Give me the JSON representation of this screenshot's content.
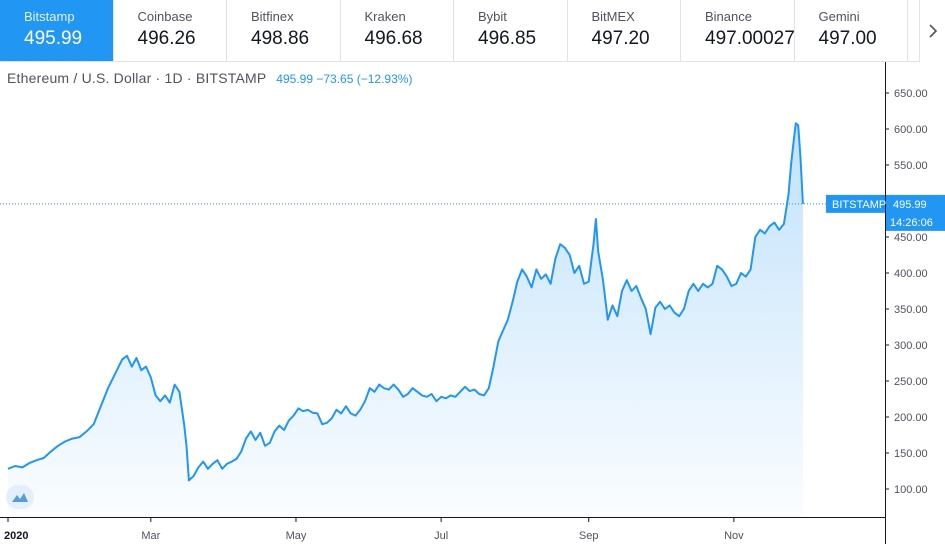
{
  "tabs": [
    {
      "name": "Bitstamp",
      "price": "495.99",
      "active": true
    },
    {
      "name": "Coinbase",
      "price": "496.26"
    },
    {
      "name": "Bitfinex",
      "price": "498.86"
    },
    {
      "name": "Kraken",
      "price": "496.68"
    },
    {
      "name": "Bybit",
      "price": "496.85"
    },
    {
      "name": "BitMEX",
      "price": "497.20"
    },
    {
      "name": "Binance",
      "price": "497.000274"
    },
    {
      "name": "Gemini",
      "price": "497.00"
    }
  ],
  "legend": {
    "symbol": "Ethereum / U.S. Dollar · 1D · BITSTAMP",
    "last": "495.99",
    "change": "−73.65",
    "change_pct": "(−12.93%)"
  },
  "price_badge": {
    "label": "BITSTAMP",
    "value": "495.99",
    "countdown": "14:26:06"
  },
  "colors": {
    "accent": "#2196f3",
    "tab_active": "#2196f3",
    "area_fill": "#2196f3"
  },
  "icons": {
    "next": "chevron-right-icon",
    "logo": "tradingview-logo-icon"
  },
  "chart_data": {
    "type": "area",
    "ylim": [
      50,
      675
    ],
    "y_ticks": [
      100,
      150,
      200,
      250,
      300,
      350,
      400,
      450,
      500,
      550,
      600,
      650
    ],
    "y_tick_labels": [
      "100.00",
      "150.00",
      "200.00",
      "250.00",
      "300.00",
      "350.00",
      "400.00",
      "450.00",
      "500.00",
      "550.00",
      "600.00",
      "650.00"
    ],
    "x_ticks": [
      {
        "day": 0,
        "label": "2020"
      },
      {
        "day": 60,
        "label": "Mar"
      },
      {
        "day": 121,
        "label": "May"
      },
      {
        "day": 182,
        "label": "Jul"
      },
      {
        "day": 244,
        "label": "Sep"
      },
      {
        "day": 305,
        "label": "Nov"
      }
    ],
    "last_value": 495.99,
    "points": [
      [
        0,
        128
      ],
      [
        3,
        132
      ],
      [
        6,
        130
      ],
      [
        9,
        136
      ],
      [
        12,
        140
      ],
      [
        15,
        143
      ],
      [
        18,
        152
      ],
      [
        21,
        160
      ],
      [
        24,
        166
      ],
      [
        27,
        170
      ],
      [
        30,
        172
      ],
      [
        33,
        180
      ],
      [
        36,
        190
      ],
      [
        39,
        215
      ],
      [
        42,
        240
      ],
      [
        45,
        260
      ],
      [
        48,
        280
      ],
      [
        50,
        285
      ],
      [
        52,
        270
      ],
      [
        54,
        282
      ],
      [
        56,
        265
      ],
      [
        58,
        270
      ],
      [
        60,
        255
      ],
      [
        62,
        230
      ],
      [
        64,
        222
      ],
      [
        66,
        230
      ],
      [
        68,
        220
      ],
      [
        70,
        245
      ],
      [
        72,
        235
      ],
      [
        74,
        190
      ],
      [
        75,
        160
      ],
      [
        76,
        112
      ],
      [
        78,
        118
      ],
      [
        80,
        130
      ],
      [
        82,
        138
      ],
      [
        84,
        128
      ],
      [
        86,
        135
      ],
      [
        88,
        140
      ],
      [
        90,
        128
      ],
      [
        92,
        135
      ],
      [
        94,
        138
      ],
      [
        96,
        142
      ],
      [
        98,
        152
      ],
      [
        100,
        170
      ],
      [
        102,
        180
      ],
      [
        104,
        168
      ],
      [
        106,
        178
      ],
      [
        108,
        160
      ],
      [
        110,
        164
      ],
      [
        112,
        180
      ],
      [
        114,
        188
      ],
      [
        116,
        182
      ],
      [
        118,
        195
      ],
      [
        120,
        202
      ],
      [
        122,
        212
      ],
      [
        124,
        208
      ],
      [
        126,
        210
      ],
      [
        128,
        206
      ],
      [
        130,
        205
      ],
      [
        132,
        190
      ],
      [
        134,
        192
      ],
      [
        136,
        198
      ],
      [
        138,
        210
      ],
      [
        140,
        205
      ],
      [
        142,
        215
      ],
      [
        144,
        205
      ],
      [
        146,
        202
      ],
      [
        148,
        210
      ],
      [
        150,
        222
      ],
      [
        152,
        240
      ],
      [
        154,
        235
      ],
      [
        156,
        245
      ],
      [
        158,
        240
      ],
      [
        160,
        238
      ],
      [
        162,
        245
      ],
      [
        164,
        238
      ],
      [
        166,
        228
      ],
      [
        168,
        232
      ],
      [
        170,
        240
      ],
      [
        172,
        235
      ],
      [
        174,
        230
      ],
      [
        176,
        228
      ],
      [
        178,
        232
      ],
      [
        180,
        222
      ],
      [
        182,
        228
      ],
      [
        184,
        226
      ],
      [
        186,
        230
      ],
      [
        188,
        228
      ],
      [
        190,
        235
      ],
      [
        192,
        242
      ],
      [
        194,
        236
      ],
      [
        196,
        238
      ],
      [
        198,
        232
      ],
      [
        200,
        230
      ],
      [
        202,
        240
      ],
      [
        204,
        270
      ],
      [
        206,
        305
      ],
      [
        208,
        320
      ],
      [
        210,
        335
      ],
      [
        212,
        360
      ],
      [
        214,
        388
      ],
      [
        216,
        405
      ],
      [
        218,
        395
      ],
      [
        220,
        380
      ],
      [
        222,
        405
      ],
      [
        224,
        392
      ],
      [
        226,
        398
      ],
      [
        228,
        385
      ],
      [
        230,
        420
      ],
      [
        232,
        440
      ],
      [
        234,
        435
      ],
      [
        236,
        425
      ],
      [
        238,
        400
      ],
      [
        240,
        410
      ],
      [
        242,
        385
      ],
      [
        244,
        388
      ],
      [
        246,
        440
      ],
      [
        247,
        475
      ],
      [
        248,
        430
      ],
      [
        250,
        390
      ],
      [
        252,
        335
      ],
      [
        254,
        355
      ],
      [
        256,
        340
      ],
      [
        258,
        375
      ],
      [
        260,
        390
      ],
      [
        262,
        375
      ],
      [
        264,
        382
      ],
      [
        266,
        365
      ],
      [
        268,
        350
      ],
      [
        270,
        315
      ],
      [
        272,
        352
      ],
      [
        274,
        360
      ],
      [
        276,
        350
      ],
      [
        278,
        355
      ],
      [
        280,
        345
      ],
      [
        282,
        340
      ],
      [
        284,
        350
      ],
      [
        286,
        375
      ],
      [
        288,
        385
      ],
      [
        290,
        375
      ],
      [
        292,
        385
      ],
      [
        294,
        380
      ],
      [
        296,
        385
      ],
      [
        298,
        410
      ],
      [
        300,
        405
      ],
      [
        302,
        395
      ],
      [
        304,
        382
      ],
      [
        306,
        385
      ],
      [
        308,
        400
      ],
      [
        310,
        395
      ],
      [
        312,
        405
      ],
      [
        314,
        450
      ],
      [
        316,
        460
      ],
      [
        318,
        455
      ],
      [
        320,
        465
      ],
      [
        322,
        470
      ],
      [
        324,
        460
      ],
      [
        326,
        468
      ],
      [
        328,
        510
      ],
      [
        329,
        550
      ],
      [
        330,
        580
      ],
      [
        331,
        608
      ],
      [
        332,
        605
      ],
      [
        333,
        560
      ],
      [
        334,
        496
      ]
    ]
  }
}
